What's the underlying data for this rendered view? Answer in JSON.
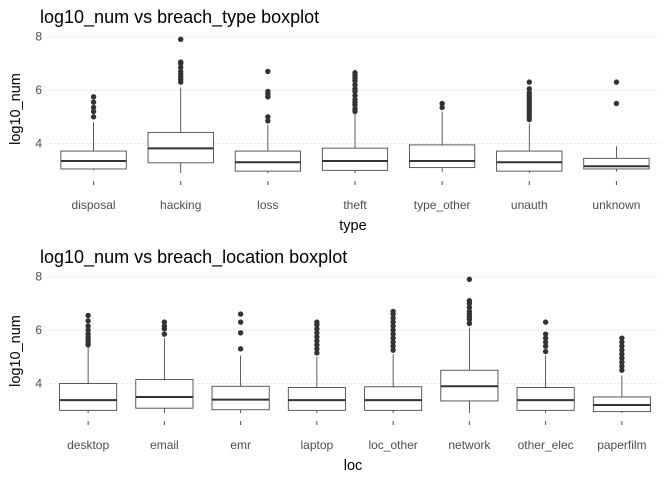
{
  "chart_data": [
    {
      "type": "boxplot",
      "title": "log10_num vs breach_type boxplot",
      "xlabel": "type",
      "ylabel": "log10_num",
      "ylim": [
        2.6,
        8.25
      ],
      "yticks": [
        4,
        6,
        8
      ],
      "grid": true,
      "categories": [
        "disposal",
        "hacking",
        "loss",
        "theft",
        "type_other",
        "unauth",
        "unknown"
      ],
      "stats": [
        {
          "min": 3.0,
          "q1": 3.05,
          "median": 3.35,
          "q3": 3.72,
          "max": 4.8,
          "outliers": [
            5.0,
            5.2,
            5.35,
            5.55,
            5.75
          ]
        },
        {
          "min": 2.9,
          "q1": 3.28,
          "median": 3.82,
          "q3": 4.42,
          "max": 6.1,
          "outliers": [
            6.3,
            6.4,
            6.5,
            6.6,
            6.7,
            6.85,
            7.0,
            7.05,
            7.9
          ]
        },
        {
          "min": 2.9,
          "q1": 2.97,
          "median": 3.3,
          "q3": 3.72,
          "max": 4.7,
          "outliers": [
            4.85,
            5.0,
            5.75,
            5.85,
            5.95,
            6.7
          ]
        },
        {
          "min": 2.9,
          "q1": 3.0,
          "median": 3.35,
          "q3": 3.83,
          "max": 5.1,
          "outliers": [
            5.2,
            5.3,
            5.45,
            5.55,
            5.65,
            5.8,
            5.95,
            6.05,
            6.2,
            6.35,
            6.45,
            6.55,
            6.65
          ]
        },
        {
          "min": 2.95,
          "q1": 3.1,
          "median": 3.35,
          "q3": 3.95,
          "max": 5.2,
          "outliers": [
            5.35,
            5.5
          ]
        },
        {
          "min": 2.9,
          "q1": 2.97,
          "median": 3.3,
          "q3": 3.72,
          "max": 4.75,
          "outliers": [
            4.9,
            5.0,
            5.1,
            5.2,
            5.3,
            5.4,
            5.5,
            5.6,
            5.7,
            5.8,
            5.9,
            6.05,
            6.3
          ]
        },
        {
          "min": 2.95,
          "q1": 3.05,
          "median": 3.15,
          "q3": 3.45,
          "max": 3.9,
          "outliers": [
            5.5,
            6.3
          ]
        }
      ]
    },
    {
      "type": "boxplot",
      "title": "log10_num vs breach_location boxplot",
      "xlabel": "loc",
      "ylabel": "log10_num",
      "ylim": [
        2.6,
        8.25
      ],
      "yticks": [
        4,
        6,
        8
      ],
      "grid": true,
      "categories": [
        "desktop",
        "email",
        "emr",
        "laptop",
        "loc_other",
        "network",
        "other_elec",
        "paperfilm"
      ],
      "stats": [
        {
          "min": 2.9,
          "q1": 3.0,
          "median": 3.38,
          "q3": 4.0,
          "max": 5.35,
          "outliers": [
            5.45,
            5.55,
            5.65,
            5.75,
            5.85,
            6.0,
            6.15,
            6.35,
            6.55
          ]
        },
        {
          "min": 2.9,
          "q1": 3.08,
          "median": 3.5,
          "q3": 4.15,
          "max": 5.7,
          "outliers": [
            5.85,
            6.05,
            6.15,
            6.3
          ]
        },
        {
          "min": 2.9,
          "q1": 3.02,
          "median": 3.4,
          "q3": 3.9,
          "max": 5.05,
          "outliers": [
            5.3,
            5.9,
            6.3,
            6.6
          ]
        },
        {
          "min": 2.9,
          "q1": 3.0,
          "median": 3.38,
          "q3": 3.85,
          "max": 5.0,
          "outliers": [
            5.15,
            5.3,
            5.45,
            5.6,
            5.75,
            5.9,
            6.05,
            6.2,
            6.3
          ]
        },
        {
          "min": 2.9,
          "q1": 3.0,
          "median": 3.38,
          "q3": 3.88,
          "max": 5.1,
          "outliers": [
            5.25,
            5.4,
            5.55,
            5.7,
            5.85,
            6.0,
            6.15,
            6.3,
            6.45,
            6.6,
            6.7
          ]
        },
        {
          "min": 2.9,
          "q1": 3.35,
          "median": 3.9,
          "q3": 4.5,
          "max": 6.1,
          "outliers": [
            6.25,
            6.4,
            6.5,
            6.6,
            6.7,
            6.85,
            7.0,
            7.1,
            7.9
          ]
        },
        {
          "min": 2.9,
          "q1": 3.0,
          "median": 3.38,
          "q3": 3.85,
          "max": 5.05,
          "outliers": [
            5.2,
            5.4,
            5.55,
            5.7,
            5.85,
            6.3
          ]
        },
        {
          "min": 2.9,
          "q1": 2.95,
          "median": 3.2,
          "q3": 3.5,
          "max": 4.3,
          "outliers": [
            4.5,
            4.65,
            4.8,
            4.95,
            5.1,
            5.25,
            5.4,
            5.55,
            5.7
          ]
        }
      ]
    }
  ]
}
